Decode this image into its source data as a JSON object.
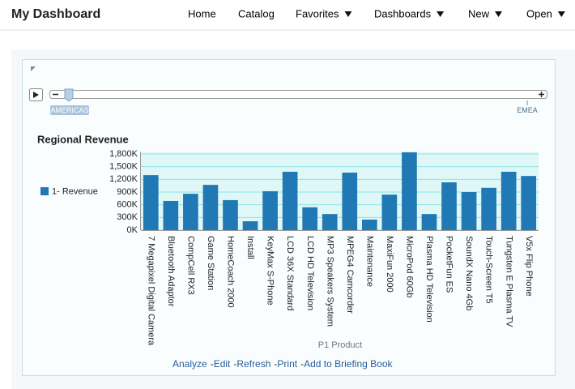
{
  "header": {
    "title": "My Dashboard",
    "nav": [
      "Home",
      "Catalog",
      "Favorites",
      "Dashboards",
      "New",
      "Open"
    ]
  },
  "slider": {
    "start_label": "AMERICAS",
    "end_label": "EMEA"
  },
  "chart_data": {
    "type": "bar",
    "title": "Regional Revenue",
    "x_label": "P1 Product",
    "categories": [
      "7 Megapixel Digital Camera",
      "Bluetooth Adaptor",
      "CompCell RX3",
      "Game Station",
      "HomeCoach 2000",
      "Install",
      "KeyMax S-Phone",
      "LCD 36X Standard",
      "LCD HD Television",
      "MP3 Speakers System",
      "MPEG4 Camcorder",
      "Maintenance",
      "MaxiFun 2000",
      "MicroPod 60Gb",
      "Plasma HD Television",
      "PocketFun ES",
      "SoundX Nano 4Gb",
      "Touch-Screen T5",
      "Tungsten E Plasma TV",
      "V5x Flip Phone"
    ],
    "series": [
      {
        "name": "1- Revenue",
        "color": "#2079b4",
        "values": [
          1300000,
          690000,
          860000,
          1070000,
          710000,
          210000,
          920000,
          1380000,
          540000,
          380000,
          1360000,
          250000,
          840000,
          1840000,
          380000,
          1130000,
          900000,
          1000000,
          1380000,
          1280000
        ]
      }
    ],
    "ylim": [
      0,
      1850000
    ],
    "yticks": [
      {
        "value": 0,
        "label": "0K"
      },
      {
        "value": 300000,
        "label": "300K"
      },
      {
        "value": 600000,
        "label": "600K"
      },
      {
        "value": 900000,
        "label": "900K"
      },
      {
        "value": 1200000,
        "label": "1,200K"
      },
      {
        "value": 1500000,
        "label": "1,500K"
      },
      {
        "value": 1800000,
        "label": "1,800K"
      }
    ],
    "grid": true
  },
  "links": [
    "Analyze",
    "Edit",
    "Refresh",
    "Print",
    "Add to Briefing Book"
  ],
  "link_separator": "-"
}
